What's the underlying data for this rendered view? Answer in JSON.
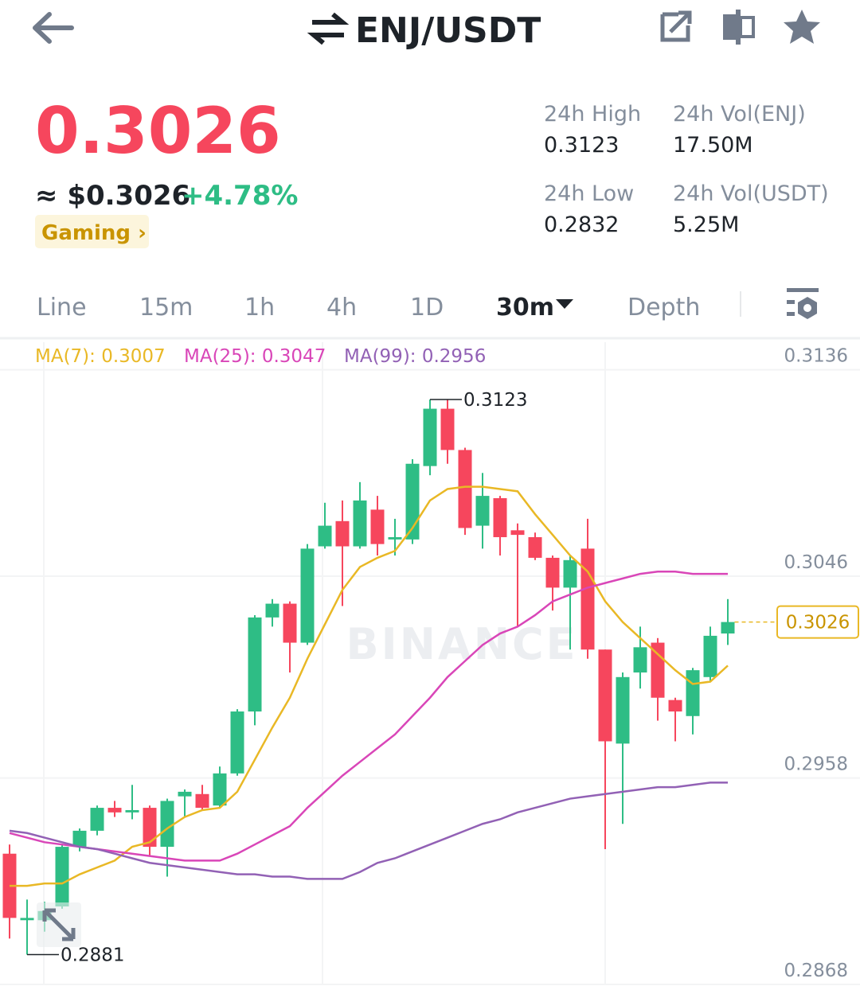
{
  "header": {
    "pair": "ENJ/USDT"
  },
  "price": {
    "last": "0.3026",
    "approx": "≈ $0.3026",
    "change": "+4.78%",
    "tag": "Gaming ›"
  },
  "stats": [
    {
      "label": "24h High",
      "value": "0.3123"
    },
    {
      "label": "24h Vol(ENJ)",
      "value": "17.50M"
    },
    {
      "label": "24h Low",
      "value": "0.2832"
    },
    {
      "label": "24h Vol(USDT)",
      "value": "5.25M"
    }
  ],
  "tabs": [
    "Line",
    "15m",
    "1h",
    "4h",
    "1D",
    "30m",
    "Depth"
  ],
  "selected_tab": 5,
  "chart_data": {
    "type": "candlestick",
    "watermark": "BINANCE",
    "up_color": "#2ebd85",
    "down_color": "#f6465d",
    "candles": {
      "open": [
        0.2925,
        0.2896,
        0.2896,
        0.2902,
        0.2928,
        0.2935,
        0.2945,
        0.2943,
        0.2945,
        0.2928,
        0.295,
        0.2951,
        0.2946,
        0.296,
        0.2987,
        0.3028,
        0.3034,
        0.3017,
        0.3059,
        0.307,
        0.3059,
        0.3075,
        0.3062,
        0.3062,
        0.3094,
        0.3119,
        0.3101,
        0.3068,
        0.308,
        0.3066,
        0.3063,
        0.3054,
        0.3041,
        0.3058,
        0.3014,
        0.2973,
        0.3004,
        0.3017,
        0.2992,
        0.2985,
        0.3002,
        0.3021
      ],
      "high": [
        0.2929,
        0.2905,
        0.2904,
        0.2929,
        0.2936,
        0.2946,
        0.2948,
        0.2955,
        0.2946,
        0.2949,
        0.2953,
        0.2955,
        0.2963,
        0.2988,
        0.3029,
        0.3036,
        0.3035,
        0.306,
        0.3078,
        0.3079,
        0.3087,
        0.3081,
        0.3071,
        0.3097,
        0.3123,
        0.3123,
        0.3102,
        0.3091,
        0.3081,
        0.3069,
        0.3065,
        0.3055,
        0.3055,
        0.3071,
        0.3014,
        0.3004,
        0.3024,
        0.3019,
        0.2993,
        0.3006,
        0.3024,
        0.3036
      ],
      "low": [
        0.2888,
        0.2881,
        0.2891,
        0.2901,
        0.2926,
        0.2933,
        0.2941,
        0.294,
        0.2924,
        0.2915,
        0.2941,
        0.2944,
        0.2945,
        0.2959,
        0.2981,
        0.3024,
        0.3004,
        0.3016,
        0.3058,
        0.3033,
        0.3058,
        0.3055,
        0.3055,
        0.306,
        0.309,
        0.3095,
        0.3064,
        0.3058,
        0.3055,
        0.3024,
        0.3053,
        0.3031,
        0.3014,
        0.301,
        0.2927,
        0.2938,
        0.2997,
        0.2983,
        0.2974,
        0.2977,
        0.3,
        0.3016
      ],
      "close": [
        0.2897,
        0.2897,
        0.29,
        0.2928,
        0.2935,
        0.2945,
        0.2943,
        0.2944,
        0.2928,
        0.2948,
        0.2952,
        0.2945,
        0.296,
        0.2987,
        0.3028,
        0.3034,
        0.3017,
        0.3058,
        0.3068,
        0.3059,
        0.3079,
        0.306,
        0.3063,
        0.3095,
        0.3119,
        0.3101,
        0.3067,
        0.3081,
        0.3063,
        0.3064,
        0.3054,
        0.3041,
        0.3053,
        0.3014,
        0.2974,
        0.3002,
        0.3015,
        0.2993,
        0.2987,
        0.3005,
        0.302,
        0.3026
      ]
    },
    "lines": [
      {
        "name": "MA(7): 0.3007",
        "color": "#e9b825",
        "values": [
          0.2911,
          0.2911,
          0.2912,
          0.2912,
          0.2916,
          0.2919,
          0.2922,
          0.2928,
          0.293,
          0.2936,
          0.2941,
          0.2944,
          0.2945,
          0.2952,
          0.2966,
          0.298,
          0.2993,
          0.301,
          0.3025,
          0.304,
          0.305,
          0.3054,
          0.3057,
          0.3067,
          0.3079,
          0.3084,
          0.3085,
          0.3085,
          0.3084,
          0.3083,
          0.3073,
          0.3064,
          0.3055,
          0.3048,
          0.3035,
          0.3026,
          0.3019,
          0.3012,
          0.3005,
          0.2999,
          0.3,
          0.3007
        ]
      },
      {
        "name": "MA(25): 0.3047",
        "color": "#d946b8",
        "values": [
          0.2934,
          0.2932,
          0.293,
          0.2929,
          0.2928,
          0.2927,
          0.2926,
          0.2925,
          0.2924,
          0.2923,
          0.2922,
          0.2922,
          0.2922,
          0.2925,
          0.2929,
          0.2933,
          0.2937,
          0.2945,
          0.2952,
          0.2959,
          0.2965,
          0.2971,
          0.2977,
          0.2985,
          0.2993,
          0.3002,
          0.3009,
          0.3016,
          0.3021,
          0.3024,
          0.3029,
          0.3035,
          0.3038,
          0.3041,
          0.3043,
          0.3045,
          0.3047,
          0.3048,
          0.3048,
          0.3047,
          0.3047,
          0.3047
        ]
      },
      {
        "name": "MA(99): 0.2956",
        "color": "#9261b5",
        "values": [
          0.2935,
          0.2934,
          0.2932,
          0.293,
          0.2928,
          0.2927,
          0.2925,
          0.2923,
          0.2921,
          0.292,
          0.2919,
          0.2918,
          0.2917,
          0.2916,
          0.2916,
          0.2915,
          0.2915,
          0.2914,
          0.2914,
          0.2914,
          0.2917,
          0.2921,
          0.2923,
          0.2926,
          0.2929,
          0.2932,
          0.2935,
          0.2938,
          0.294,
          0.2943,
          0.2945,
          0.2947,
          0.2949,
          0.295,
          0.2951,
          0.2952,
          0.2953,
          0.2954,
          0.2954,
          0.2955,
          0.2956,
          0.2956
        ]
      }
    ],
    "high_label": 0.3123,
    "low_label": 0.2881,
    "last_price": 0.3026,
    "ylim": [
      0.2868,
      0.3148
    ],
    "yticks": [
      0.3136,
      0.3046,
      0.2958,
      0.2868
    ],
    "grid": true
  }
}
